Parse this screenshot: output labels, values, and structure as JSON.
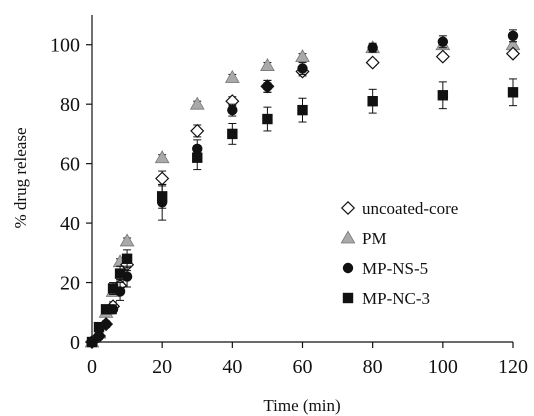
{
  "chart_data": {
    "type": "scatter",
    "title": "",
    "xlabel": "Time (min)",
    "ylabel": "% drug release",
    "xlim": [
      0,
      120
    ],
    "ylim": [
      0,
      110
    ],
    "xticks": [
      0,
      20,
      40,
      60,
      80,
      100,
      120
    ],
    "yticks": [
      0,
      20,
      40,
      60,
      80,
      100
    ],
    "xtick_labels": [
      "0",
      "20",
      "40",
      "60",
      "80",
      "100",
      "120"
    ],
    "ytick_labels": [
      "0",
      "20",
      "40",
      "60",
      "80",
      "100"
    ],
    "grid": false,
    "legend_position": "right",
    "series": [
      {
        "name": "uncoated-core",
        "marker": "diamond-open",
        "color": "#111111",
        "points": [
          [
            0,
            0
          ],
          [
            2,
            2
          ],
          [
            4,
            6
          ],
          [
            6,
            12
          ],
          [
            8,
            19
          ],
          [
            10,
            26
          ],
          [
            20,
            55
          ],
          [
            30,
            71
          ],
          [
            40,
            81
          ],
          [
            50,
            86
          ],
          [
            60,
            91
          ],
          [
            80,
            94
          ],
          [
            100,
            96
          ],
          [
            120,
            97
          ]
        ],
        "errors": [
          0,
          0.5,
          1,
          1.5,
          2,
          2,
          2.5,
          2,
          1.5,
          2,
          1.5,
          1,
          1,
          1
        ]
      },
      {
        "name": "PM",
        "marker": "triangle",
        "color": "#a9a9a9",
        "points": [
          [
            0,
            0
          ],
          [
            2,
            3
          ],
          [
            4,
            10
          ],
          [
            6,
            17
          ],
          [
            8,
            27
          ],
          [
            10,
            34
          ],
          [
            20,
            62
          ],
          [
            30,
            80
          ],
          [
            40,
            89
          ],
          [
            50,
            93
          ],
          [
            60,
            96
          ],
          [
            80,
            99
          ],
          [
            100,
            100
          ],
          [
            120,
            100
          ]
        ],
        "errors": [
          0,
          0.5,
          1,
          1,
          1,
          1,
          1,
          1,
          1,
          1,
          1,
          1,
          1,
          1
        ]
      },
      {
        "name": "MP-NS-5",
        "marker": "circle",
        "color": "#111111",
        "points": [
          [
            0,
            0
          ],
          [
            2,
            2
          ],
          [
            4,
            6
          ],
          [
            6,
            11
          ],
          [
            8,
            17
          ],
          [
            10,
            22
          ],
          [
            20,
            47
          ],
          [
            30,
            65
          ],
          [
            40,
            78
          ],
          [
            50,
            86
          ],
          [
            60,
            92
          ],
          [
            80,
            99
          ],
          [
            100,
            101
          ],
          [
            120,
            103
          ]
        ],
        "errors": [
          0,
          0.5,
          1,
          1.5,
          3,
          3.5,
          6,
          3,
          2,
          2,
          2,
          1.5,
          2,
          2
        ]
      },
      {
        "name": "MP-NC-3",
        "marker": "square",
        "color": "#111111",
        "points": [
          [
            0,
            0
          ],
          [
            2,
            5
          ],
          [
            4,
            11
          ],
          [
            6,
            18
          ],
          [
            8,
            23
          ],
          [
            10,
            28
          ],
          [
            20,
            49
          ],
          [
            30,
            62
          ],
          [
            40,
            70
          ],
          [
            50,
            75
          ],
          [
            60,
            78
          ],
          [
            80,
            81
          ],
          [
            100,
            83
          ],
          [
            120,
            84
          ]
        ],
        "errors": [
          0,
          1,
          1,
          2,
          2.5,
          3,
          4,
          4,
          3.5,
          4,
          4,
          4,
          4.5,
          4.5
        ]
      }
    ]
  }
}
